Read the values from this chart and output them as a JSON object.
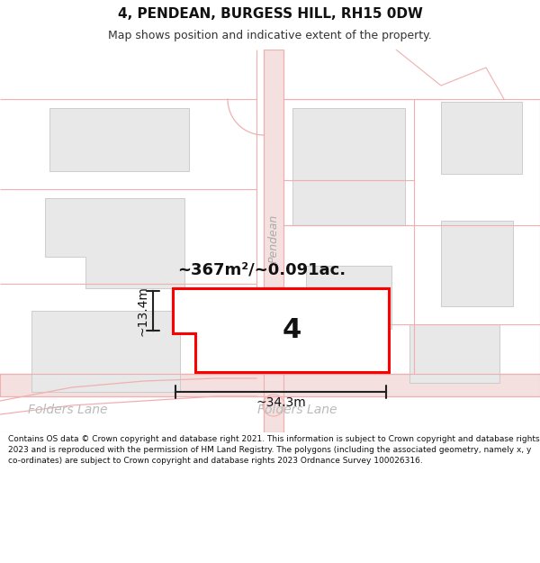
{
  "title": "4, PENDEAN, BURGESS HILL, RH15 0DW",
  "subtitle": "Map shows position and indicative extent of the property.",
  "area_label": "~367m²/~0.091ac.",
  "plot_number": "4",
  "dim_width": "~34.3m",
  "dim_height": "~13.4m",
  "street_pendean": "Pendean",
  "street_folders1": "Folders Lane",
  "street_folders2": "Folders Lane",
  "footer": "Contains OS data © Crown copyright and database right 2021. This information is subject to Crown copyright and database rights 2023 and is reproduced with the permission of HM Land Registry. The polygons (including the associated geometry, namely x, y co-ordinates) are subject to Crown copyright and database rights 2023 Ordnance Survey 100026316.",
  "bg_color": "#ffffff",
  "plot_fill": "#ffffff",
  "plot_outline": "#ff0000",
  "lp": "#f0b0b0",
  "lp2": "#e8c0c0",
  "building_fill": "#e8e8e8",
  "building_stroke": "#cccccc",
  "road_fill": "#f5e0e0",
  "dim_color": "#222222",
  "street_color": "#bbbbbb",
  "title_fontsize": 11,
  "subtitle_fontsize": 9,
  "footer_fontsize": 6.5
}
